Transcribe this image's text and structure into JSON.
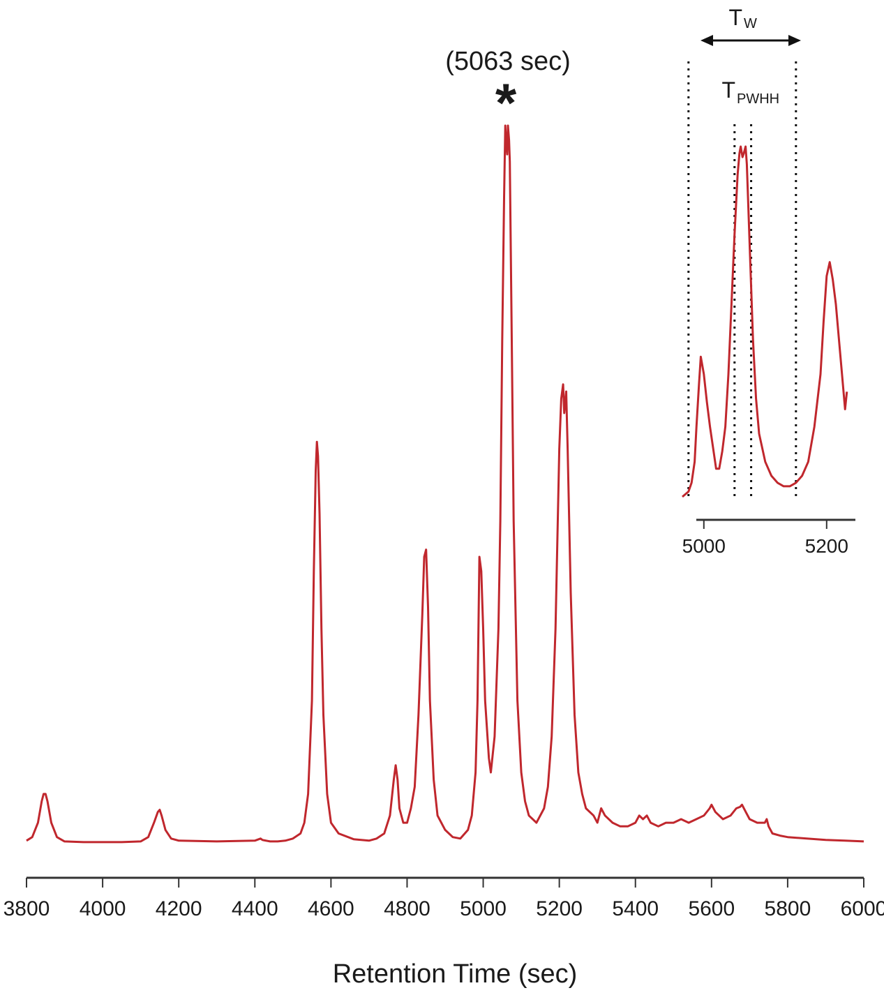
{
  "chart_data": [
    {
      "type": "line",
      "xlabel": "Retention Time (sec)",
      "ylabel": "",
      "xlim": [
        3800,
        6000
      ],
      "ylim": [
        0,
        1.0
      ],
      "x_ticks": [
        3800,
        4000,
        4200,
        4400,
        4600,
        4800,
        5000,
        5200,
        5400,
        5600,
        5800,
        6000
      ],
      "color": "#c0272d",
      "grid": false,
      "series": [
        {
          "x": [
            3800,
            3815,
            3830,
            3840,
            3845,
            3850,
            3855,
            3865,
            3880,
            3900,
            3950,
            4000,
            4050,
            4100,
            4120,
            4135,
            4145,
            4150,
            4155,
            4165,
            4180,
            4200,
            4300,
            4400,
            4410,
            4415,
            4420,
            4440,
            4460,
            4480,
            4500,
            4520,
            4530,
            4540,
            4550,
            4555,
            4560,
            4563,
            4566,
            4570,
            4575,
            4580,
            4590,
            4600,
            4620,
            4660,
            4700,
            4720,
            4740,
            4755,
            4765,
            4770,
            4775,
            4780,
            4790,
            4800,
            4810,
            4820,
            4830,
            4840,
            4845,
            4850,
            4855,
            4860,
            4870,
            4880,
            4890,
            4900,
            4920,
            4940,
            4960,
            4970,
            4980,
            4985,
            4990,
            4995,
            5000,
            5005,
            5015,
            5020,
            5030,
            5040,
            5045,
            5050,
            5055,
            5058,
            5060,
            5063,
            5065,
            5068,
            5070,
            5075,
            5080,
            5090,
            5100,
            5110,
            5120,
            5140,
            5160,
            5170,
            5180,
            5190,
            5200,
            5205,
            5210,
            5213,
            5218,
            5222,
            5230,
            5240,
            5250,
            5260,
            5270,
            5290,
            5300,
            5310,
            5320,
            5340,
            5360,
            5380,
            5400,
            5410,
            5420,
            5430,
            5440,
            5460,
            5480,
            5500,
            5520,
            5540,
            5560,
            5580,
            5595,
            5600,
            5610,
            5630,
            5650,
            5665,
            5675,
            5680,
            5690,
            5700,
            5720,
            5740,
            5745,
            5750,
            5760,
            5780,
            5800,
            5850,
            5900,
            5950,
            6000
          ],
          "y": [
            0.005,
            0.01,
            0.03,
            0.06,
            0.07,
            0.07,
            0.06,
            0.03,
            0.01,
            0.004,
            0.003,
            0.003,
            0.003,
            0.004,
            0.01,
            0.03,
            0.045,
            0.048,
            0.04,
            0.02,
            0.008,
            0.005,
            0.004,
            0.005,
            0.007,
            0.008,
            0.006,
            0.004,
            0.004,
            0.005,
            0.008,
            0.015,
            0.03,
            0.07,
            0.2,
            0.38,
            0.52,
            0.56,
            0.54,
            0.46,
            0.3,
            0.18,
            0.07,
            0.03,
            0.015,
            0.007,
            0.005,
            0.008,
            0.015,
            0.04,
            0.09,
            0.11,
            0.09,
            0.05,
            0.03,
            0.03,
            0.05,
            0.08,
            0.18,
            0.32,
            0.4,
            0.41,
            0.33,
            0.2,
            0.09,
            0.04,
            0.03,
            0.02,
            0.01,
            0.008,
            0.02,
            0.04,
            0.1,
            0.2,
            0.4,
            0.38,
            0.3,
            0.2,
            0.12,
            0.1,
            0.15,
            0.3,
            0.45,
            0.7,
            0.9,
            1.0,
            0.98,
            0.96,
            1.0,
            0.98,
            0.95,
            0.7,
            0.45,
            0.2,
            0.1,
            0.06,
            0.04,
            0.03,
            0.05,
            0.08,
            0.15,
            0.3,
            0.55,
            0.62,
            0.64,
            0.6,
            0.63,
            0.55,
            0.35,
            0.18,
            0.1,
            0.07,
            0.05,
            0.04,
            0.03,
            0.05,
            0.04,
            0.03,
            0.025,
            0.025,
            0.03,
            0.04,
            0.035,
            0.04,
            0.03,
            0.025,
            0.03,
            0.03,
            0.035,
            0.03,
            0.035,
            0.04,
            0.05,
            0.055,
            0.045,
            0.035,
            0.04,
            0.05,
            0.052,
            0.055,
            0.045,
            0.035,
            0.03,
            0.03,
            0.035,
            0.025,
            0.015,
            0.012,
            0.01,
            0.008,
            0.006,
            0.005,
            0.004
          ]
        }
      ],
      "annotation_time": "(5063 sec)",
      "annotation_marker": "*",
      "annotation_x": 5063
    },
    {
      "type": "line",
      "role": "inset",
      "xlabel": "",
      "ylabel": "",
      "xlim": [
        4965,
        5240
      ],
      "ylim": [
        0,
        1.0
      ],
      "x_ticks": [
        5000,
        5200
      ],
      "color": "#c0272d",
      "grid": false,
      "series": [
        {
          "x": [
            4965,
            4975,
            4980,
            4985,
            4988,
            4992,
            4995,
            5000,
            5005,
            5010,
            5015,
            5020,
            5025,
            5030,
            5035,
            5040,
            5045,
            5050,
            5055,
            5058,
            5060,
            5063,
            5065,
            5068,
            5070,
            5075,
            5080,
            5085,
            5090,
            5100,
            5110,
            5120,
            5130,
            5140,
            5150,
            5160,
            5170,
            5180,
            5190,
            5195,
            5200,
            5205,
            5210,
            5215,
            5220,
            5225,
            5230,
            5233
          ],
          "y": [
            0.0,
            0.015,
            0.04,
            0.1,
            0.2,
            0.32,
            0.4,
            0.35,
            0.27,
            0.2,
            0.14,
            0.08,
            0.08,
            0.13,
            0.2,
            0.35,
            0.55,
            0.75,
            0.92,
            0.98,
            1.0,
            0.97,
            0.98,
            1.0,
            0.95,
            0.7,
            0.45,
            0.28,
            0.18,
            0.1,
            0.06,
            0.04,
            0.03,
            0.03,
            0.04,
            0.06,
            0.1,
            0.2,
            0.35,
            0.5,
            0.63,
            0.67,
            0.62,
            0.55,
            0.45,
            0.35,
            0.25,
            0.3
          ]
        }
      ],
      "tw_label": "T",
      "tw_sub": "W",
      "tpwhh_label": "T",
      "tpwhh_sub": "PWHH",
      "tw_range": [
        4975,
        5150
      ],
      "tpwhh_range": [
        5050,
        5077
      ]
    }
  ]
}
